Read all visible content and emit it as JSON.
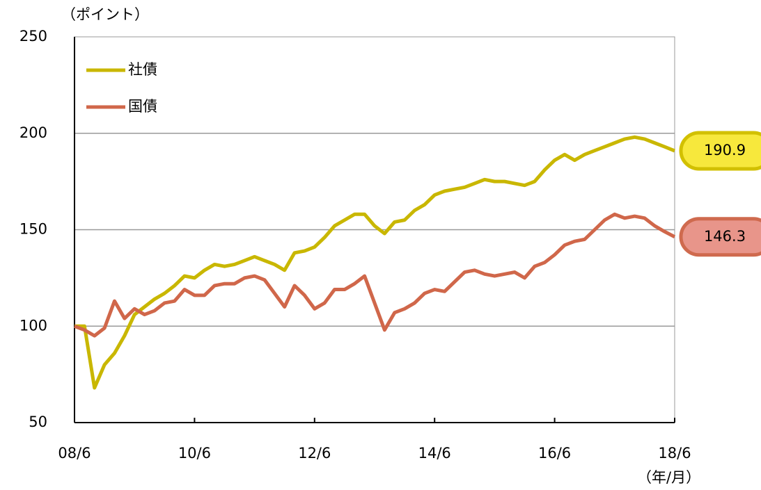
{
  "chart_data": {
    "type": "line",
    "y_axis_label": "（ポイント）",
    "x_axis_label": "（年/月）",
    "categories": [
      "08/6",
      null,
      null,
      null,
      null,
      null,
      null,
      null,
      null,
      null,
      null,
      null,
      "10/6",
      null,
      null,
      null,
      null,
      null,
      null,
      null,
      null,
      null,
      null,
      null,
      "12/6",
      null,
      null,
      null,
      null,
      null,
      null,
      null,
      null,
      null,
      null,
      null,
      "14/6",
      null,
      null,
      null,
      null,
      null,
      null,
      null,
      null,
      null,
      null,
      null,
      "16/6",
      null,
      null,
      null,
      null,
      null,
      null,
      null,
      null,
      null,
      null,
      null,
      "18/6"
    ],
    "series": [
      {
        "name": "社債",
        "color": "#c9b700",
        "label_fill": "#f7e83c",
        "label_border": "#d2c000",
        "end_label": "190.9",
        "values": [
          100,
          100,
          68,
          80,
          86,
          95,
          106,
          110,
          114,
          117,
          121,
          126,
          125,
          129,
          132,
          131,
          132,
          134,
          136,
          134,
          132,
          129,
          138,
          139,
          141,
          146,
          152,
          155,
          158,
          158,
          152,
          148,
          154,
          155,
          160,
          163,
          168,
          170,
          171,
          172,
          174,
          176,
          175,
          175,
          174,
          173,
          175,
          181,
          186,
          189,
          186,
          189,
          191,
          193,
          195,
          197,
          198,
          197,
          195,
          193,
          190.9
        ]
      },
      {
        "name": "国債",
        "color": "#d0674a",
        "label_fill": "#e8958a",
        "label_border": "#cf6a4e",
        "end_label": "146.3",
        "values": [
          100,
          98,
          95,
          99,
          113,
          104,
          109,
          106,
          108,
          112,
          113,
          119,
          116,
          116,
          121,
          122,
          122,
          125,
          126,
          124,
          117,
          110,
          121,
          116,
          109,
          112,
          119,
          119,
          122,
          126,
          112,
          98,
          107,
          109,
          112,
          117,
          119,
          118,
          123,
          128,
          129,
          127,
          126,
          127,
          128,
          125,
          131,
          133,
          137,
          142,
          144,
          145,
          150,
          155,
          158,
          156,
          157,
          156,
          152,
          149,
          146.3
        ]
      }
    ],
    "ylim": [
      50,
      250
    ],
    "yticks": [
      50,
      100,
      150,
      200,
      250
    ],
    "grid": true,
    "legend": "top-left"
  }
}
